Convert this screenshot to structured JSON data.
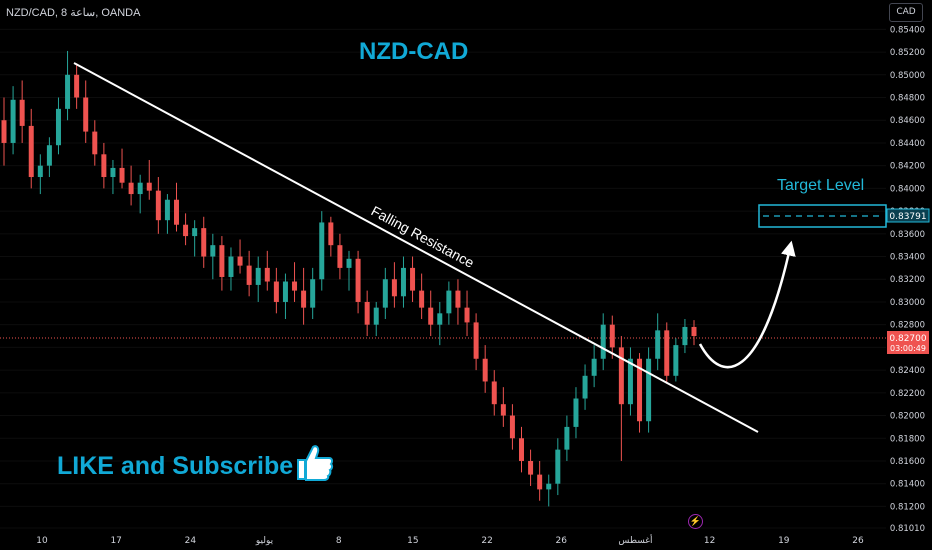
{
  "header": {
    "symbol_line": "NZD/CAD, 8 ساعة, OANDA",
    "currency_button": "CAD"
  },
  "title": "NZD-CAD",
  "annotations": {
    "trendline_label": "Falling Resistance",
    "target_label": "Target Level",
    "cta": "LIKE and Subscribe"
  },
  "price_badges": {
    "current_price": "0.82700",
    "countdown": "03:00:49",
    "target_price": "0.83791"
  },
  "icons": [
    "thumbs-up-icon",
    "lightning-icon"
  ],
  "colors": {
    "up": "#26a69a",
    "down": "#ef5350",
    "accent": "#11a9d6",
    "target": "#22b8d8"
  },
  "chart_data": {
    "type": "candlestick",
    "symbol": "NZD/CAD",
    "timeframe": "8h",
    "source": "OANDA",
    "ylim": [
      0.8101,
      0.855
    ],
    "y_tick_labels": [
      "0.81010",
      "0.81200",
      "0.81400",
      "0.81600",
      "0.81800",
      "0.82000",
      "0.82200",
      "0.82400",
      "0.82600",
      "0.82800",
      "0.83000",
      "0.83200",
      "0.83400",
      "0.83600",
      "0.83800",
      "0.84000",
      "0.84200",
      "0.84400",
      "0.84600",
      "0.84800",
      "0.85000",
      "0.85200",
      "0.85400"
    ],
    "x_tick_labels": [
      "10",
      "17",
      "24",
      "يوليو",
      "8",
      "15",
      "22",
      "26",
      "أغسطس",
      "12",
      "19",
      "26"
    ],
    "current_price": 0.827,
    "target_price": 0.83791,
    "trendline": {
      "label": "Falling Resistance",
      "from": {
        "date": "Jun 13",
        "price": 0.8521
      },
      "to": {
        "date": "Aug 16",
        "price": 0.8184
      }
    },
    "candles": [
      {
        "o": 0.846,
        "h": 0.848,
        "l": 0.842,
        "c": 0.844
      },
      {
        "o": 0.844,
        "h": 0.849,
        "l": 0.843,
        "c": 0.8478
      },
      {
        "o": 0.8478,
        "h": 0.8495,
        "l": 0.844,
        "c": 0.8455
      },
      {
        "o": 0.8455,
        "h": 0.847,
        "l": 0.84,
        "c": 0.841
      },
      {
        "o": 0.841,
        "h": 0.843,
        "l": 0.8395,
        "c": 0.842
      },
      {
        "o": 0.842,
        "h": 0.8445,
        "l": 0.841,
        "c": 0.8438
      },
      {
        "o": 0.8438,
        "h": 0.848,
        "l": 0.843,
        "c": 0.847
      },
      {
        "o": 0.847,
        "h": 0.8521,
        "l": 0.846,
        "c": 0.85
      },
      {
        "o": 0.85,
        "h": 0.851,
        "l": 0.847,
        "c": 0.848
      },
      {
        "o": 0.848,
        "h": 0.8495,
        "l": 0.844,
        "c": 0.845
      },
      {
        "o": 0.845,
        "h": 0.846,
        "l": 0.842,
        "c": 0.843
      },
      {
        "o": 0.843,
        "h": 0.844,
        "l": 0.84,
        "c": 0.841
      },
      {
        "o": 0.841,
        "h": 0.8425,
        "l": 0.8395,
        "c": 0.8418
      },
      {
        "o": 0.8418,
        "h": 0.8435,
        "l": 0.84,
        "c": 0.8405
      },
      {
        "o": 0.8405,
        "h": 0.842,
        "l": 0.8385,
        "c": 0.8395
      },
      {
        "o": 0.8395,
        "h": 0.8412,
        "l": 0.8378,
        "c": 0.8405
      },
      {
        "o": 0.8405,
        "h": 0.8425,
        "l": 0.839,
        "c": 0.8398
      },
      {
        "o": 0.8398,
        "h": 0.841,
        "l": 0.836,
        "c": 0.8372
      },
      {
        "o": 0.8372,
        "h": 0.8395,
        "l": 0.836,
        "c": 0.839
      },
      {
        "o": 0.839,
        "h": 0.8405,
        "l": 0.8362,
        "c": 0.8368
      },
      {
        "o": 0.8368,
        "h": 0.8378,
        "l": 0.835,
        "c": 0.8358
      },
      {
        "o": 0.8358,
        "h": 0.8372,
        "l": 0.834,
        "c": 0.8365
      },
      {
        "o": 0.8365,
        "h": 0.8375,
        "l": 0.833,
        "c": 0.834
      },
      {
        "o": 0.834,
        "h": 0.836,
        "l": 0.832,
        "c": 0.835
      },
      {
        "o": 0.835,
        "h": 0.8358,
        "l": 0.831,
        "c": 0.8322
      },
      {
        "o": 0.8322,
        "h": 0.8348,
        "l": 0.831,
        "c": 0.834
      },
      {
        "o": 0.834,
        "h": 0.8355,
        "l": 0.8325,
        "c": 0.8332
      },
      {
        "o": 0.8332,
        "h": 0.8345,
        "l": 0.8305,
        "c": 0.8315
      },
      {
        "o": 0.8315,
        "h": 0.834,
        "l": 0.83,
        "c": 0.833
      },
      {
        "o": 0.833,
        "h": 0.8345,
        "l": 0.831,
        "c": 0.8318
      },
      {
        "o": 0.8318,
        "h": 0.833,
        "l": 0.829,
        "c": 0.83
      },
      {
        "o": 0.83,
        "h": 0.8325,
        "l": 0.8285,
        "c": 0.8318
      },
      {
        "o": 0.8318,
        "h": 0.8335,
        "l": 0.83,
        "c": 0.831
      },
      {
        "o": 0.831,
        "h": 0.833,
        "l": 0.828,
        "c": 0.8295
      },
      {
        "o": 0.8295,
        "h": 0.833,
        "l": 0.8285,
        "c": 0.832
      },
      {
        "o": 0.832,
        "h": 0.838,
        "l": 0.831,
        "c": 0.837
      },
      {
        "o": 0.837,
        "h": 0.8375,
        "l": 0.834,
        "c": 0.835
      },
      {
        "o": 0.835,
        "h": 0.836,
        "l": 0.832,
        "c": 0.833
      },
      {
        "o": 0.833,
        "h": 0.8345,
        "l": 0.831,
        "c": 0.8338
      },
      {
        "o": 0.8338,
        "h": 0.8345,
        "l": 0.829,
        "c": 0.83
      },
      {
        "o": 0.83,
        "h": 0.831,
        "l": 0.827,
        "c": 0.828
      },
      {
        "o": 0.828,
        "h": 0.83,
        "l": 0.827,
        "c": 0.8295
      },
      {
        "o": 0.8295,
        "h": 0.833,
        "l": 0.8285,
        "c": 0.832
      },
      {
        "o": 0.832,
        "h": 0.8335,
        "l": 0.8295,
        "c": 0.8305
      },
      {
        "o": 0.8305,
        "h": 0.834,
        "l": 0.8295,
        "c": 0.833
      },
      {
        "o": 0.833,
        "h": 0.834,
        "l": 0.83,
        "c": 0.831
      },
      {
        "o": 0.831,
        "h": 0.8325,
        "l": 0.8285,
        "c": 0.8295
      },
      {
        "o": 0.8295,
        "h": 0.831,
        "l": 0.827,
        "c": 0.828
      },
      {
        "o": 0.828,
        "h": 0.83,
        "l": 0.8262,
        "c": 0.829
      },
      {
        "o": 0.829,
        "h": 0.8318,
        "l": 0.828,
        "c": 0.831
      },
      {
        "o": 0.831,
        "h": 0.832,
        "l": 0.828,
        "c": 0.8295
      },
      {
        "o": 0.8295,
        "h": 0.831,
        "l": 0.827,
        "c": 0.8282
      },
      {
        "o": 0.8282,
        "h": 0.829,
        "l": 0.824,
        "c": 0.825
      },
      {
        "o": 0.825,
        "h": 0.8262,
        "l": 0.822,
        "c": 0.823
      },
      {
        "o": 0.823,
        "h": 0.824,
        "l": 0.82,
        "c": 0.821
      },
      {
        "o": 0.821,
        "h": 0.8225,
        "l": 0.819,
        "c": 0.82
      },
      {
        "o": 0.82,
        "h": 0.821,
        "l": 0.817,
        "c": 0.818
      },
      {
        "o": 0.818,
        "h": 0.819,
        "l": 0.815,
        "c": 0.816
      },
      {
        "o": 0.816,
        "h": 0.817,
        "l": 0.8138,
        "c": 0.8148
      },
      {
        "o": 0.8148,
        "h": 0.816,
        "l": 0.8125,
        "c": 0.8135
      },
      {
        "o": 0.8135,
        "h": 0.8148,
        "l": 0.812,
        "c": 0.814
      },
      {
        "o": 0.814,
        "h": 0.818,
        "l": 0.813,
        "c": 0.817
      },
      {
        "o": 0.817,
        "h": 0.82,
        "l": 0.816,
        "c": 0.819
      },
      {
        "o": 0.819,
        "h": 0.8225,
        "l": 0.818,
        "c": 0.8215
      },
      {
        "o": 0.8215,
        "h": 0.8245,
        "l": 0.8205,
        "c": 0.8235
      },
      {
        "o": 0.8235,
        "h": 0.8262,
        "l": 0.8225,
        "c": 0.825
      },
      {
        "o": 0.825,
        "h": 0.829,
        "l": 0.824,
        "c": 0.828
      },
      {
        "o": 0.828,
        "h": 0.8288,
        "l": 0.825,
        "c": 0.826
      },
      {
        "o": 0.826,
        "h": 0.827,
        "l": 0.816,
        "c": 0.821
      },
      {
        "o": 0.821,
        "h": 0.826,
        "l": 0.82,
        "c": 0.825
      },
      {
        "o": 0.825,
        "h": 0.8255,
        "l": 0.8185,
        "c": 0.8195
      },
      {
        "o": 0.8195,
        "h": 0.826,
        "l": 0.8185,
        "c": 0.825
      },
      {
        "o": 0.825,
        "h": 0.829,
        "l": 0.824,
        "c": 0.8275
      },
      {
        "o": 0.8275,
        "h": 0.8282,
        "l": 0.8228,
        "c": 0.8235
      },
      {
        "o": 0.8235,
        "h": 0.8268,
        "l": 0.823,
        "c": 0.8262
      },
      {
        "o": 0.8262,
        "h": 0.8285,
        "l": 0.8255,
        "c": 0.8278
      },
      {
        "o": 0.8278,
        "h": 0.8284,
        "l": 0.8262,
        "c": 0.827
      }
    ]
  }
}
